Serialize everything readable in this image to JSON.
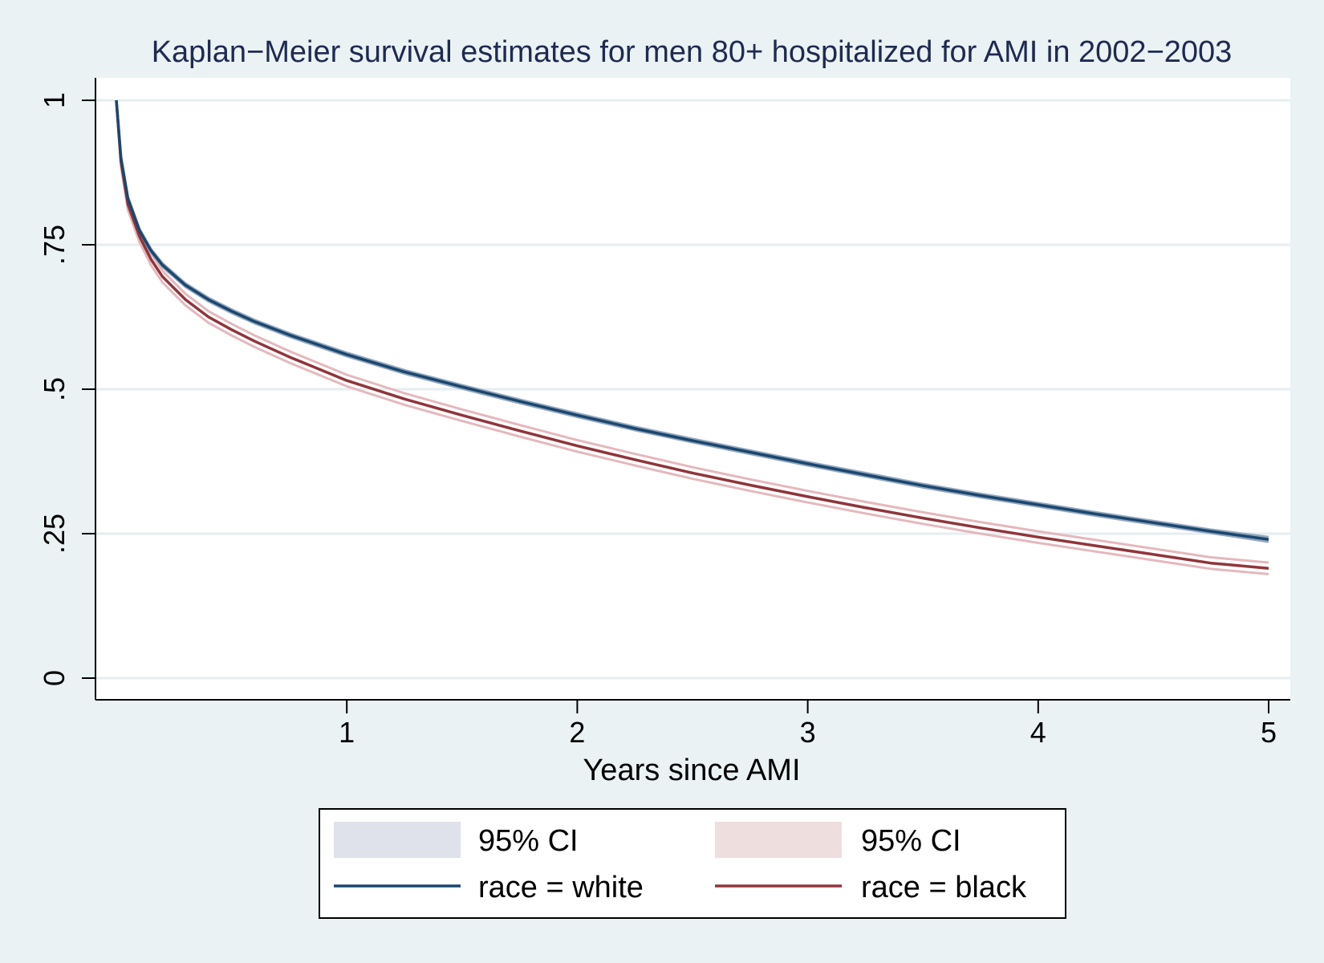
{
  "chart_data": {
    "type": "line",
    "title": "Kaplan−Meier survival estimates for men 80+ hospitalized for AMI in 2002−2003",
    "xlabel": "Years since AMI",
    "ylabel": "",
    "xlim": [
      0,
      5
    ],
    "ylim": [
      0,
      1
    ],
    "x_ticks": [
      1,
      2,
      3,
      4,
      5
    ],
    "x_tick_labels": [
      "1",
      "2",
      "3",
      "4",
      "5"
    ],
    "y_ticks": [
      0,
      0.25,
      0.5,
      0.75,
      1
    ],
    "y_tick_labels": [
      "0",
      ".25",
      ".5",
      ".75",
      "1"
    ],
    "grid": true,
    "legend_position": "bottom",
    "x": [
      0,
      0.02,
      0.05,
      0.1,
      0.15,
      0.2,
      0.3,
      0.4,
      0.5,
      0.6,
      0.75,
      1.0,
      1.25,
      1.5,
      1.75,
      2.0,
      2.25,
      2.5,
      2.75,
      3.0,
      3.25,
      3.5,
      3.75,
      4.0,
      4.25,
      4.5,
      4.75,
      5.0
    ],
    "series": [
      {
        "name": "race = white",
        "color": "#1a476f",
        "values": [
          1.0,
          0.9,
          0.83,
          0.775,
          0.74,
          0.715,
          0.68,
          0.655,
          0.635,
          0.617,
          0.594,
          0.56,
          0.53,
          0.504,
          0.479,
          0.455,
          0.432,
          0.411,
          0.391,
          0.371,
          0.352,
          0.333,
          0.316,
          0.3,
          0.284,
          0.269,
          0.254,
          0.24
        ],
        "ci_lower": [
          1.0,
          0.897,
          0.827,
          0.772,
          0.737,
          0.712,
          0.677,
          0.652,
          0.632,
          0.614,
          0.591,
          0.557,
          0.527,
          0.501,
          0.476,
          0.452,
          0.429,
          0.408,
          0.388,
          0.368,
          0.349,
          0.33,
          0.313,
          0.297,
          0.281,
          0.266,
          0.251,
          0.236
        ],
        "ci_upper": [
          1.0,
          0.903,
          0.833,
          0.778,
          0.743,
          0.718,
          0.683,
          0.658,
          0.638,
          0.62,
          0.597,
          0.563,
          0.533,
          0.507,
          0.482,
          0.458,
          0.435,
          0.414,
          0.394,
          0.374,
          0.355,
          0.336,
          0.319,
          0.303,
          0.287,
          0.272,
          0.257,
          0.244
        ]
      },
      {
        "name": "race = black",
        "color": "#90353b",
        "values": [
          1.0,
          0.895,
          0.82,
          0.765,
          0.725,
          0.695,
          0.655,
          0.625,
          0.603,
          0.583,
          0.556,
          0.515,
          0.483,
          0.455,
          0.428,
          0.402,
          0.378,
          0.355,
          0.334,
          0.314,
          0.295,
          0.277,
          0.26,
          0.244,
          0.229,
          0.214,
          0.199,
          0.19
        ],
        "ci_lower": [
          1.0,
          0.885,
          0.81,
          0.755,
          0.715,
          0.685,
          0.645,
          0.615,
          0.593,
          0.573,
          0.546,
          0.505,
          0.473,
          0.445,
          0.418,
          0.392,
          0.368,
          0.345,
          0.324,
          0.304,
          0.285,
          0.267,
          0.25,
          0.234,
          0.219,
          0.204,
          0.189,
          0.18
        ],
        "ci_upper": [
          1.0,
          0.905,
          0.83,
          0.775,
          0.735,
          0.705,
          0.665,
          0.635,
          0.613,
          0.593,
          0.566,
          0.525,
          0.493,
          0.465,
          0.438,
          0.412,
          0.388,
          0.365,
          0.344,
          0.324,
          0.305,
          0.287,
          0.27,
          0.254,
          0.239,
          0.224,
          0.209,
          0.2
        ]
      }
    ],
    "legend": [
      {
        "label": "95% CI",
        "kind": "band",
        "color": "#dfe2ea"
      },
      {
        "label": "95% CI",
        "kind": "band",
        "color": "#efdede"
      },
      {
        "label": "race = white",
        "kind": "line",
        "color": "#1a476f"
      },
      {
        "label": "race = black",
        "kind": "line",
        "color": "#90353b"
      }
    ]
  },
  "colors": {
    "background": "#eaf2f3",
    "plot_background": "#ffffff",
    "grid": "#e6eef0",
    "white_band": "#94a7bd",
    "black_band": "#e4b8bd",
    "title": "#1e2a52"
  }
}
